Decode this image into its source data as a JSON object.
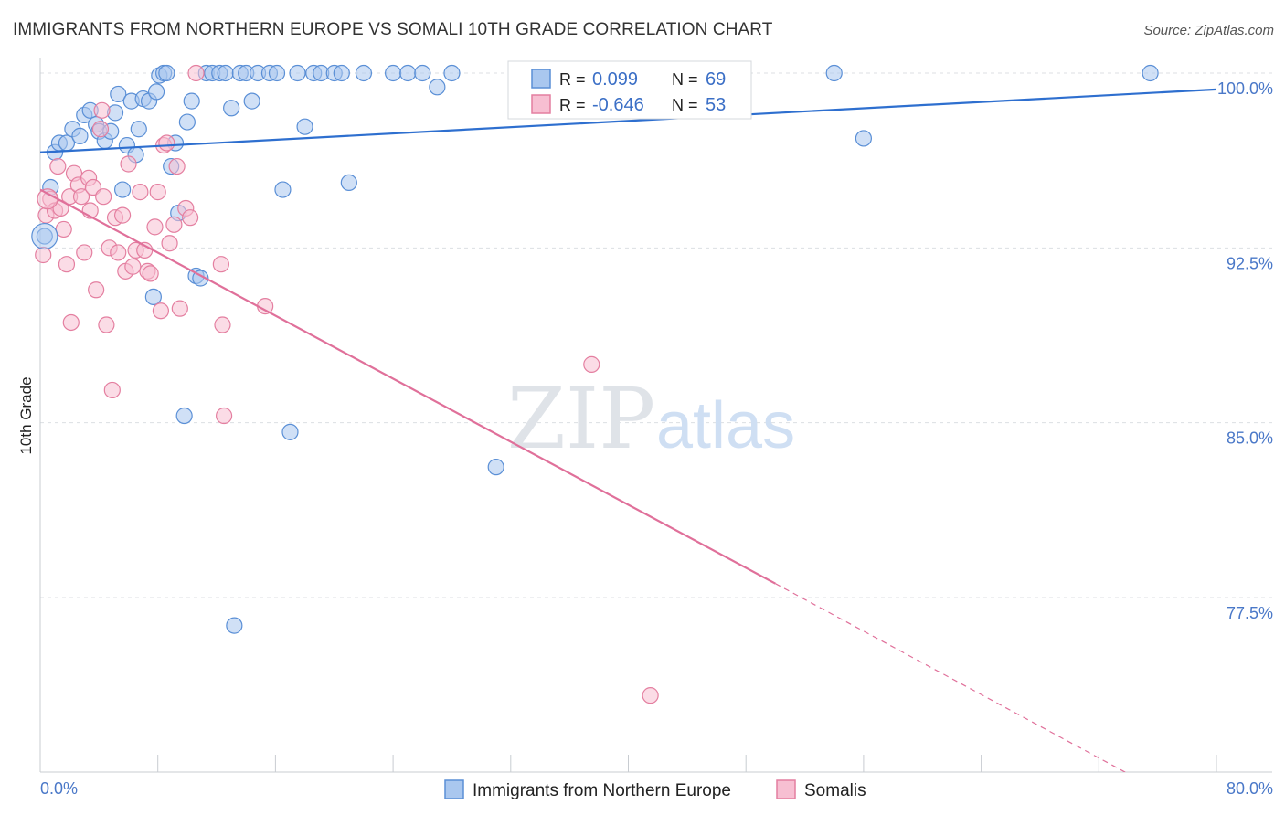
{
  "title": "IMMIGRANTS FROM NORTHERN EUROPE VS SOMALI 10TH GRADE CORRELATION CHART",
  "source": "Source: ZipAtlas.com",
  "watermark": {
    "zip": "ZIP",
    "atlas": "atlas"
  },
  "legend": {
    "rows": [
      {
        "r_label": "R =",
        "r_value": "0.099",
        "n_label": "N =",
        "n_value": "69",
        "color": "#a9c7ef",
        "stroke": "#5a8fd6"
      },
      {
        "r_label": "R =",
        "r_value": "-0.646",
        "n_label": "N =",
        "n_value": "53",
        "color": "#f7bfd2",
        "stroke": "#e47fa0"
      }
    ]
  },
  "bottom_legend": [
    {
      "label": "Immigrants from Northern Europe",
      "color": "#a9c7ef",
      "stroke": "#5a8fd6"
    },
    {
      "label": "Somalis",
      "color": "#f7bfd2",
      "stroke": "#e47fa0"
    }
  ],
  "chart_data": {
    "type": "scatter",
    "title": "IMMIGRANTS FROM NORTHERN EUROPE VS SOMALI 10TH GRADE CORRELATION CHART",
    "xlabel": "",
    "ylabel": "10th Grade",
    "xlim": [
      0,
      80
    ],
    "ylim": [
      71.5,
      100.5
    ],
    "x_tick_labels": [
      "0.0%",
      "80.0%"
    ],
    "y_ticks": [
      {
        "value": 100.0,
        "label": "100.0%"
      },
      {
        "value": 92.5,
        "label": "92.5%"
      },
      {
        "value": 85.0,
        "label": "85.0%"
      },
      {
        "value": 77.5,
        "label": "77.5%"
      }
    ],
    "grid": true,
    "legend_position": "top-center",
    "series": [
      {
        "name": "Immigrants from Northern Europe",
        "color": "#5a8fd6",
        "fill": "#a9c7ef",
        "trend": {
          "x": [
            0,
            80
          ],
          "y": [
            96.6,
            99.3
          ]
        },
        "points": [
          [
            0.3,
            93.0
          ],
          [
            0.7,
            95.1
          ],
          [
            1.0,
            96.6
          ],
          [
            1.3,
            97.0
          ],
          [
            1.8,
            97.0
          ],
          [
            2.2,
            97.6
          ],
          [
            2.7,
            97.3
          ],
          [
            3.0,
            98.2
          ],
          [
            3.4,
            98.4
          ],
          [
            3.8,
            97.8
          ],
          [
            4.0,
            97.5
          ],
          [
            4.4,
            97.1
          ],
          [
            4.8,
            97.5
          ],
          [
            5.1,
            98.3
          ],
          [
            5.3,
            99.1
          ],
          [
            5.6,
            95.0
          ],
          [
            5.9,
            96.9
          ],
          [
            6.2,
            98.8
          ],
          [
            6.5,
            96.5
          ],
          [
            6.7,
            97.6
          ],
          [
            7.0,
            98.9
          ],
          [
            7.4,
            98.8
          ],
          [
            7.7,
            90.4
          ],
          [
            7.9,
            99.2
          ],
          [
            8.1,
            99.9
          ],
          [
            8.4,
            100.0
          ],
          [
            8.6,
            100.0
          ],
          [
            8.9,
            96.0
          ],
          [
            9.2,
            97.0
          ],
          [
            9.4,
            94.0
          ],
          [
            9.8,
            85.3
          ],
          [
            10.0,
            97.9
          ],
          [
            10.3,
            98.8
          ],
          [
            10.6,
            91.3
          ],
          [
            10.9,
            91.2
          ],
          [
            11.3,
            100.0
          ],
          [
            11.7,
            100.0
          ],
          [
            12.2,
            100.0
          ],
          [
            12.6,
            100.0
          ],
          [
            13.0,
            98.5
          ],
          [
            13.2,
            76.3
          ],
          [
            13.6,
            100.0
          ],
          [
            14.0,
            100.0
          ],
          [
            14.4,
            98.8
          ],
          [
            14.8,
            100.0
          ],
          [
            15.6,
            100.0
          ],
          [
            16.1,
            100.0
          ],
          [
            16.5,
            95.0
          ],
          [
            17.0,
            84.6
          ],
          [
            17.5,
            100.0
          ],
          [
            18.0,
            97.7
          ],
          [
            18.6,
            100.0
          ],
          [
            19.1,
            100.0
          ],
          [
            20.0,
            100.0
          ],
          [
            20.5,
            100.0
          ],
          [
            21.0,
            95.3
          ],
          [
            22.0,
            100.0
          ],
          [
            24.0,
            100.0
          ],
          [
            25.0,
            100.0
          ],
          [
            26.0,
            100.0
          ],
          [
            27.0,
            99.4
          ],
          [
            28.0,
            100.0
          ],
          [
            31.0,
            83.1
          ],
          [
            33.0,
            100.0
          ],
          [
            35.0,
            100.0
          ],
          [
            43.0,
            100.0
          ],
          [
            54.0,
            100.0
          ],
          [
            56.0,
            97.2
          ],
          [
            75.5,
            100.0
          ]
        ]
      },
      {
        "name": "Somalis",
        "color": "#e47fa0",
        "fill": "#f7bfd2",
        "trend": {
          "x": [
            0,
            50
          ],
          "y": [
            95.0,
            78.1
          ]
        },
        "trend_dashed": {
          "x": [
            50,
            80
          ],
          "y": [
            78.1,
            67.9
          ]
        },
        "points": [
          [
            0.2,
            92.2
          ],
          [
            0.4,
            93.9
          ],
          [
            0.7,
            94.6
          ],
          [
            1.0,
            94.1
          ],
          [
            1.2,
            96.0
          ],
          [
            1.4,
            94.2
          ],
          [
            1.6,
            93.3
          ],
          [
            1.8,
            91.8
          ],
          [
            2.0,
            94.7
          ],
          [
            2.1,
            89.3
          ],
          [
            2.3,
            95.7
          ],
          [
            2.6,
            95.2
          ],
          [
            2.8,
            94.7
          ],
          [
            3.0,
            92.3
          ],
          [
            3.3,
            95.5
          ],
          [
            3.4,
            94.1
          ],
          [
            3.6,
            95.1
          ],
          [
            3.8,
            90.7
          ],
          [
            4.1,
            97.6
          ],
          [
            4.3,
            94.7
          ],
          [
            4.5,
            89.2
          ],
          [
            4.7,
            92.5
          ],
          [
            4.9,
            86.4
          ],
          [
            5.1,
            93.8
          ],
          [
            5.3,
            92.3
          ],
          [
            5.6,
            93.9
          ],
          [
            5.8,
            91.5
          ],
          [
            6.0,
            96.1
          ],
          [
            6.3,
            91.7
          ],
          [
            6.5,
            92.4
          ],
          [
            6.8,
            94.9
          ],
          [
            7.1,
            92.4
          ],
          [
            7.3,
            91.5
          ],
          [
            7.5,
            91.4
          ],
          [
            7.8,
            93.4
          ],
          [
            8.0,
            94.9
          ],
          [
            8.2,
            89.8
          ],
          [
            8.4,
            96.9
          ],
          [
            8.6,
            97.0
          ],
          [
            8.8,
            92.7
          ],
          [
            9.1,
            93.5
          ],
          [
            9.3,
            96.0
          ],
          [
            9.5,
            89.9
          ],
          [
            9.9,
            94.2
          ],
          [
            10.2,
            93.8
          ],
          [
            10.6,
            100.0
          ],
          [
            12.3,
            91.8
          ],
          [
            12.4,
            89.2
          ],
          [
            12.5,
            85.3
          ],
          [
            15.3,
            90.0
          ],
          [
            37.5,
            87.5
          ],
          [
            41.5,
            73.3
          ],
          [
            4.2,
            98.4
          ]
        ]
      }
    ]
  }
}
